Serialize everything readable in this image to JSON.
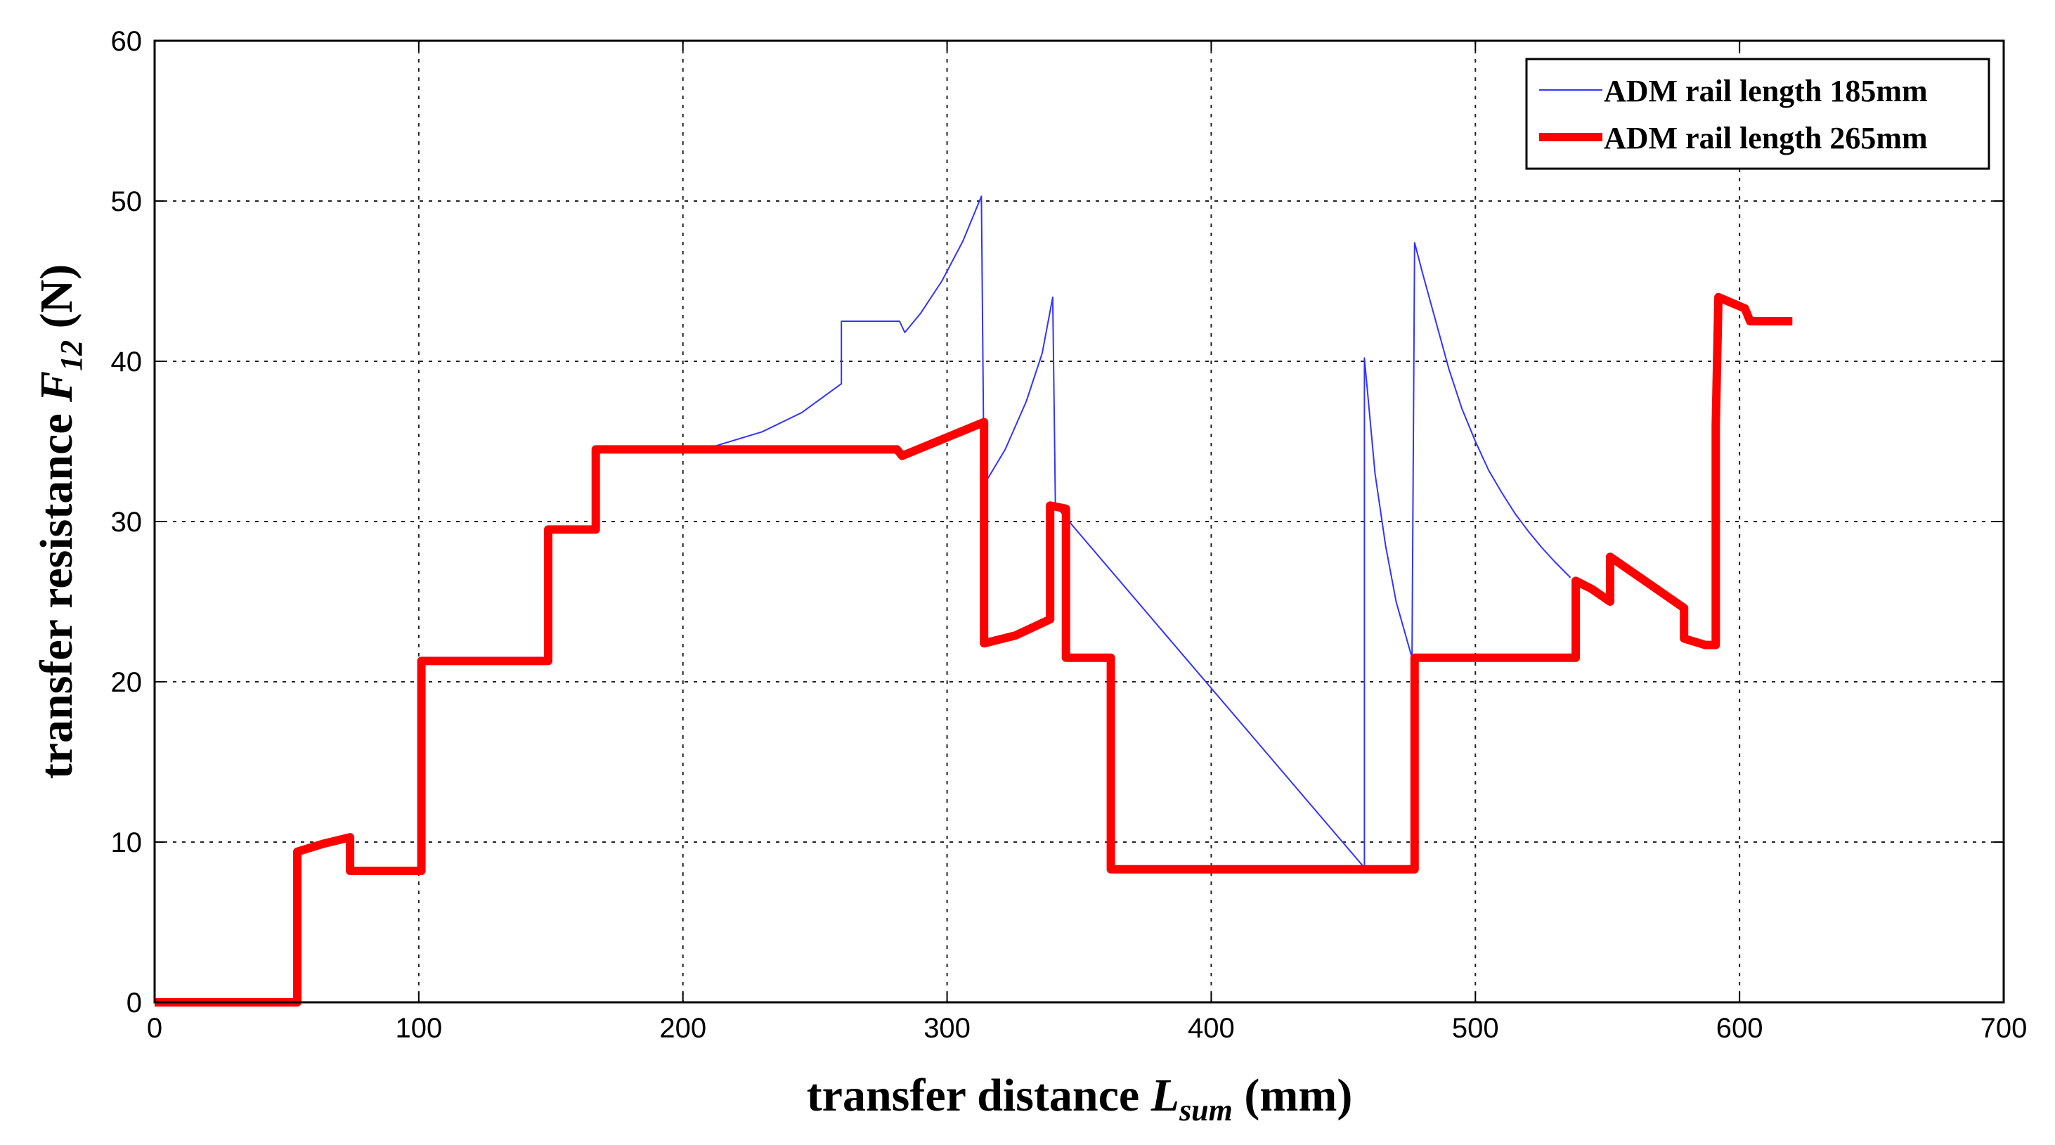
{
  "chart_data": {
    "type": "line",
    "xlabel": {
      "main": "transfer distance ",
      "symbol": "L",
      "subscript": "sum",
      "unit": " (mm)"
    },
    "ylabel": {
      "main": "transfer resistance ",
      "symbol": "F",
      "subscript": "12",
      "unit": " (N)"
    },
    "xlim": [
      0,
      700
    ],
    "ylim": [
      0,
      60
    ],
    "xticks": [
      0,
      100,
      200,
      300,
      400,
      500,
      600,
      700
    ],
    "yticks": [
      0,
      10,
      20,
      30,
      40,
      50,
      60
    ],
    "grid": true,
    "legend_position": "top-right",
    "series": [
      {
        "name": "ADM rail length 185mm",
        "color": "#3333ff",
        "points": [
          [
            212,
            34.7
          ],
          [
            230,
            35.6
          ],
          [
            245,
            36.8
          ],
          [
            260,
            38.6
          ],
          [
            260,
            42.5
          ],
          [
            282,
            42.5
          ],
          [
            284,
            41.8
          ],
          [
            290,
            43.0
          ],
          [
            298,
            45.0
          ],
          [
            306,
            47.5
          ],
          [
            313,
            50.3
          ],
          [
            314,
            32.3
          ],
          [
            322,
            34.5
          ],
          [
            330,
            37.5
          ],
          [
            336,
            40.5
          ],
          [
            340,
            44.0
          ],
          [
            341,
            31.0
          ],
          [
            458,
            8.4
          ],
          [
            458,
            40.2
          ],
          [
            462,
            33.0
          ],
          [
            466,
            28.5
          ],
          [
            470,
            25.0
          ],
          [
            476,
            21.5
          ],
          [
            477,
            47.4
          ],
          [
            480,
            45.5
          ],
          [
            485,
            42.5
          ],
          [
            490,
            39.5
          ],
          [
            495,
            37.0
          ],
          [
            500,
            35.0
          ],
          [
            505,
            33.2
          ],
          [
            510,
            31.8
          ],
          [
            515,
            30.5
          ],
          [
            520,
            29.4
          ],
          [
            525,
            28.4
          ],
          [
            530,
            27.5
          ],
          [
            536,
            26.5
          ]
        ]
      },
      {
        "name": "ADM rail length 265mm",
        "color": "#ff0000",
        "points": [
          [
            0,
            0
          ],
          [
            54,
            0
          ],
          [
            54,
            9.4
          ],
          [
            64,
            9.9
          ],
          [
            74,
            10.3
          ],
          [
            74,
            8.2
          ],
          [
            101,
            8.2
          ],
          [
            101,
            21.3
          ],
          [
            149,
            21.3
          ],
          [
            149,
            29.5
          ],
          [
            167,
            29.5
          ],
          [
            167,
            34.5
          ],
          [
            281,
            34.5
          ],
          [
            283,
            34.1
          ],
          [
            314,
            36.2
          ],
          [
            314,
            22.4
          ],
          [
            326,
            22.9
          ],
          [
            339,
            23.9
          ],
          [
            339,
            31.0
          ],
          [
            345,
            30.8
          ],
          [
            345,
            21.5
          ],
          [
            362,
            21.5
          ],
          [
            362,
            8.3
          ],
          [
            477,
            8.3
          ],
          [
            477,
            21.5
          ],
          [
            538,
            21.5
          ],
          [
            538,
            26.3
          ],
          [
            544,
            25.8
          ],
          [
            551,
            25.0
          ],
          [
            551,
            27.8
          ],
          [
            565,
            26.2
          ],
          [
            579,
            24.6
          ],
          [
            579,
            22.7
          ],
          [
            587,
            22.3
          ],
          [
            591,
            22.3
          ],
          [
            591,
            36.0
          ],
          [
            592,
            44.0
          ],
          [
            602,
            43.3
          ],
          [
            604,
            42.5
          ],
          [
            620,
            42.5
          ]
        ]
      }
    ]
  }
}
